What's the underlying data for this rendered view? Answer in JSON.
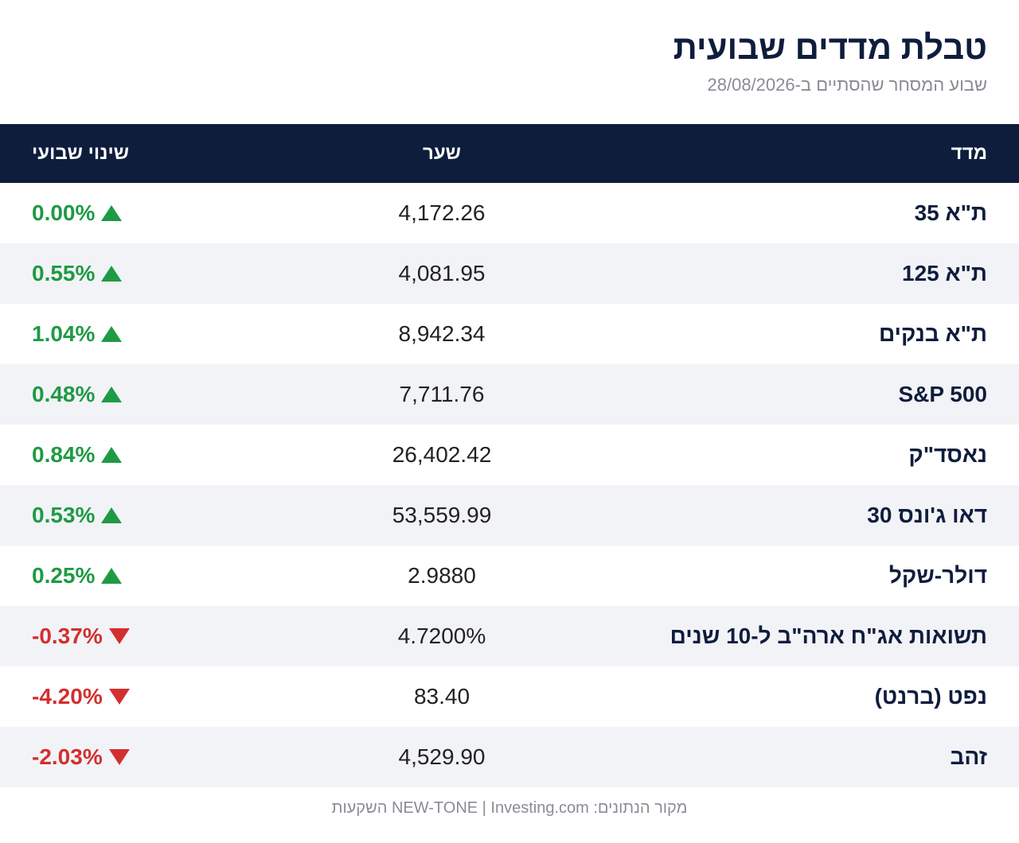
{
  "header": {
    "title": "טבלת מדדים שבועית",
    "subtitle": "שבוע המסחר שהסתיים ב-28/08/2026"
  },
  "table": {
    "columns": {
      "name": "מדד",
      "price": "שער",
      "change": "שינוי שבועי"
    },
    "rows": [
      {
        "name": "ת\"א 35",
        "price": "4,172.26",
        "change": "0.00%",
        "direction": "up"
      },
      {
        "name": "ת\"א 125",
        "price": "4,081.95",
        "change": "0.55%",
        "direction": "up"
      },
      {
        "name": "ת\"א בנקים",
        "price": "8,942.34",
        "change": "1.04%",
        "direction": "up"
      },
      {
        "name": "S&P 500",
        "price": "7,711.76",
        "change": "0.48%",
        "direction": "up"
      },
      {
        "name": "נאסד\"ק",
        "price": "26,402.42",
        "change": "0.84%",
        "direction": "up"
      },
      {
        "name": "דאו ג'ונס 30",
        "price": "53,559.99",
        "change": "0.53%",
        "direction": "up"
      },
      {
        "name": "דולר-שקל",
        "price": "2.9880",
        "change": "0.25%",
        "direction": "up"
      },
      {
        "name": "תשואות אג\"ח ארה\"ב ל-10 שנים",
        "price": "4.7200%",
        "change": "-0.37%",
        "direction": "down"
      },
      {
        "name": "נפט (ברנט)",
        "price": "83.40",
        "change": "-4.20%",
        "direction": "down"
      },
      {
        "name": "זהב",
        "price": "4,529.90",
        "change": "-2.03%",
        "direction": "down"
      }
    ]
  },
  "footer": {
    "source": "מקור הנתונים: NEW-TONE | Investing.com השקעות"
  },
  "colors": {
    "navy": "#0f1d3d",
    "up": "#1f9a44",
    "down": "#d32f2f",
    "stripe": "#f2f3f7"
  },
  "icons": {
    "up": "triangle-up-icon",
    "down": "triangle-down-icon"
  }
}
